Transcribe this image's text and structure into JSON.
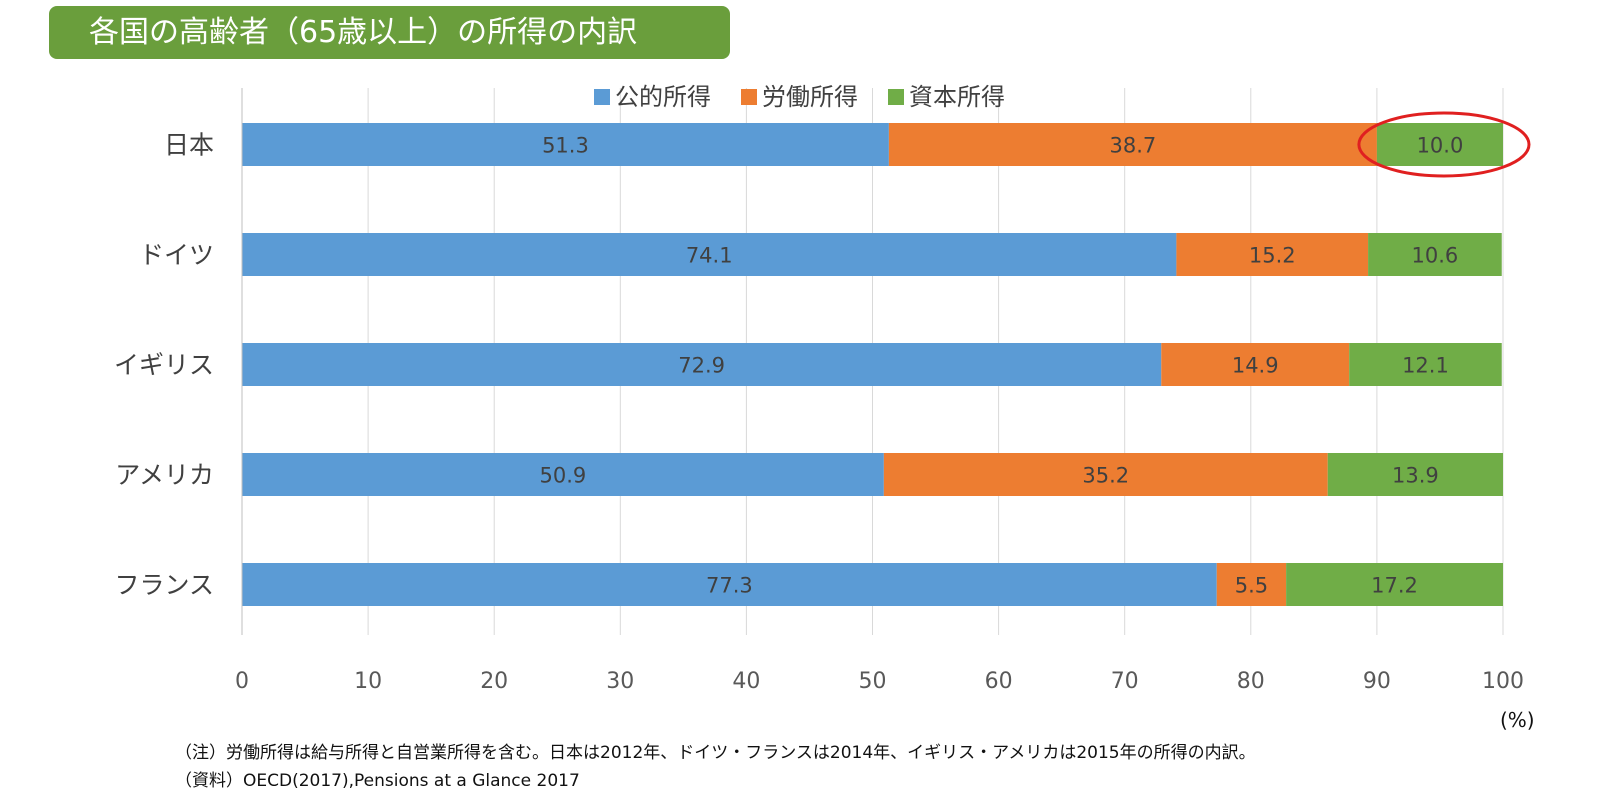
{
  "title": "各国の高齢者（65歳以上）の所得の内訳",
  "chart_data": {
    "type": "bar",
    "orientation": "horizontal",
    "stacked": true,
    "categories": [
      "日本",
      "ドイツ",
      "イギリス",
      "アメリカ",
      "フランス"
    ],
    "series": [
      {
        "name": "公的所得",
        "color": "#5b9bd5",
        "values": [
          51.3,
          74.1,
          72.9,
          50.9,
          77.3
        ]
      },
      {
        "name": "労働所得",
        "color": "#ed7d31",
        "values": [
          38.7,
          15.2,
          14.9,
          35.2,
          5.5
        ]
      },
      {
        "name": "資本所得",
        "color": "#70ad47",
        "values": [
          10.0,
          10.6,
          12.1,
          13.9,
          17.2
        ]
      }
    ],
    "xlim": [
      0,
      100
    ],
    "xticks": [
      0,
      10,
      20,
      30,
      40,
      50,
      60,
      70,
      80,
      90,
      100
    ],
    "xunit": "(%)",
    "grid": true,
    "legend": "top",
    "highlight": {
      "category": "日本",
      "series": "資本所得",
      "color": "#e02020"
    }
  },
  "notes": [
    "（注）労働所得は給与所得と自営業所得を含む。日本は2012年、ドイツ・フランスは2014年、イギリス・アメリカは2015年の所得の内訳。",
    "（資料）OECD(2017),Pensions at a Glance 2017"
  ]
}
